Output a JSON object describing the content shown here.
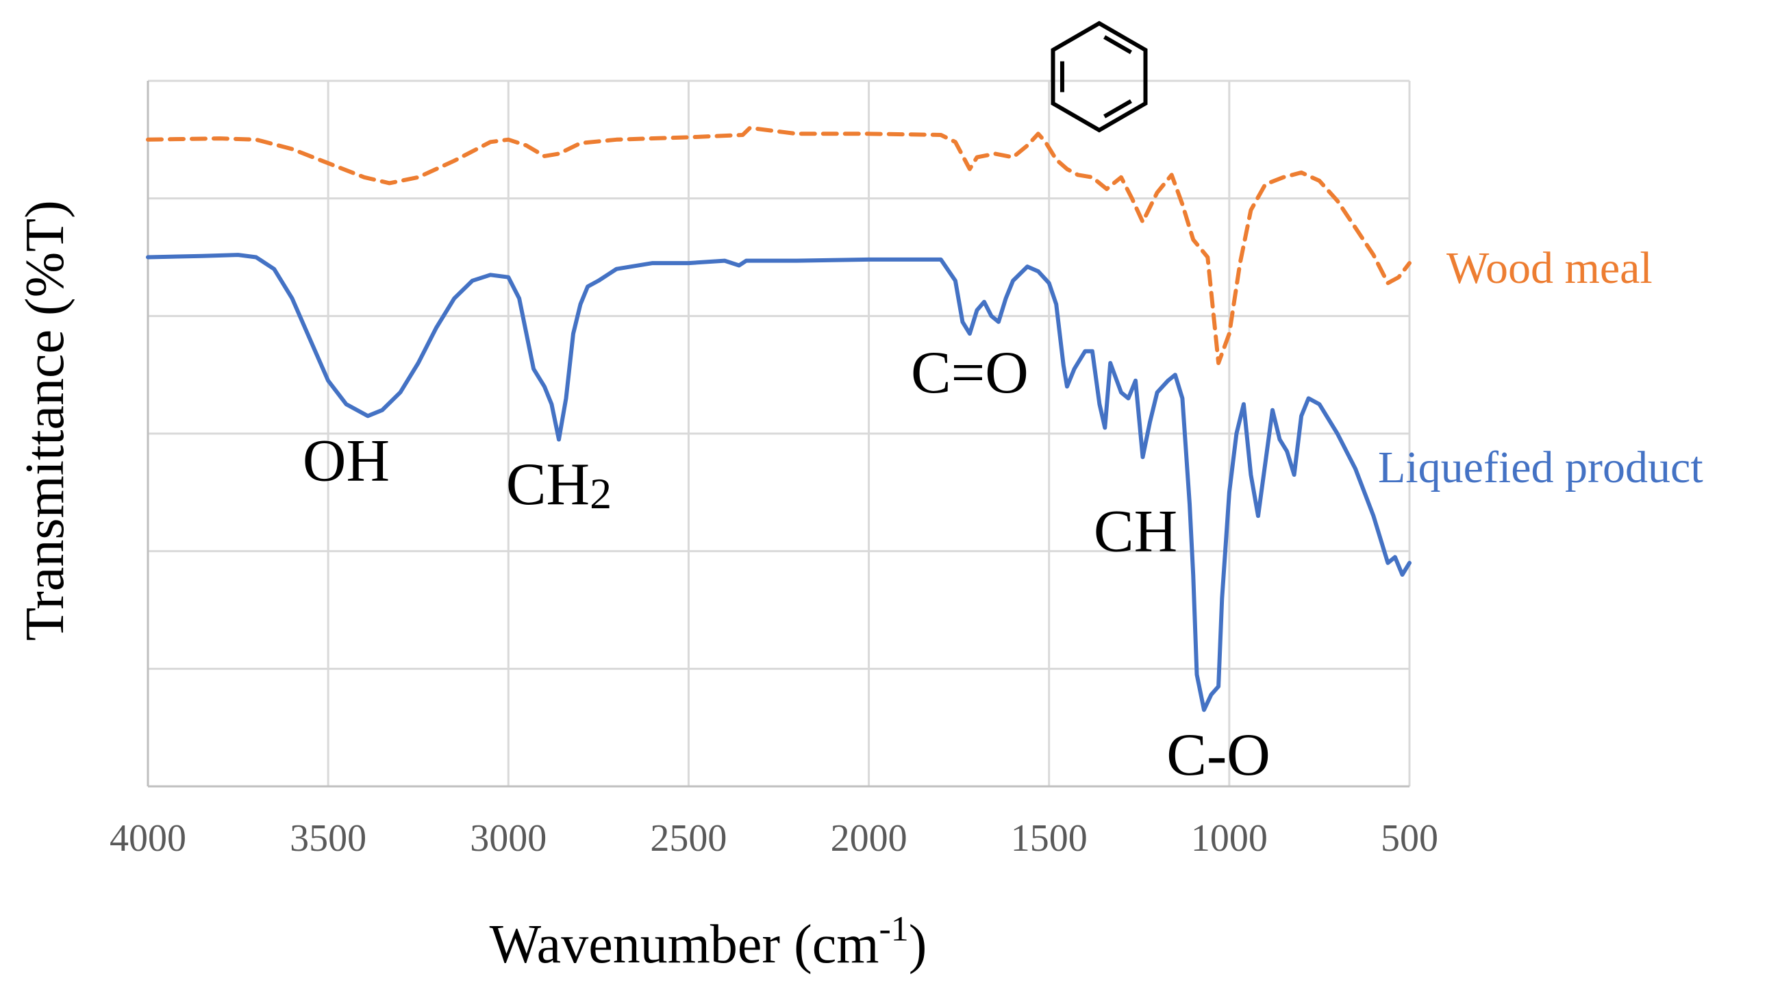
{
  "chart_data": {
    "type": "line",
    "title": "",
    "xlabel": "Wavenumber (cm-1)",
    "xlabel_main": "Wavenumber (cm",
    "xlabel_sup": "-1",
    "xlabel_close": ")",
    "ylabel": "Transmittance (%T)",
    "xlim": [
      4000,
      500
    ],
    "x_reversed": true,
    "ylim": [
      0,
      6
    ],
    "y_tick_labels_shown": false,
    "grid": true,
    "x_ticks": [
      4000,
      3500,
      3000,
      2500,
      2000,
      1500,
      1000,
      500
    ],
    "legend_placement": "right, labels next to each curve",
    "series": [
      {
        "name": "Wood meal",
        "color": "#ed7d31",
        "dash": "dashed",
        "x": [
          4000,
          3800,
          3700,
          3600,
          3500,
          3400,
          3330,
          3250,
          3150,
          3050,
          3000,
          2950,
          2900,
          2860,
          2800,
          2700,
          2500,
          2350,
          2330,
          2200,
          2000,
          1800,
          1760,
          1720,
          1700,
          1650,
          1600,
          1560,
          1530,
          1510,
          1480,
          1450,
          1420,
          1380,
          1340,
          1300,
          1270,
          1240,
          1200,
          1160,
          1130,
          1100,
          1060,
          1030,
          1000,
          970,
          940,
          900,
          850,
          800,
          750,
          700,
          650,
          600,
          560,
          530,
          500
        ],
        "y": [
          5.5,
          5.51,
          5.5,
          5.42,
          5.3,
          5.18,
          5.13,
          5.18,
          5.32,
          5.48,
          5.5,
          5.45,
          5.36,
          5.38,
          5.47,
          5.5,
          5.52,
          5.54,
          5.6,
          5.55,
          5.55,
          5.54,
          5.48,
          5.25,
          5.35,
          5.38,
          5.35,
          5.45,
          5.55,
          5.48,
          5.33,
          5.25,
          5.2,
          5.18,
          5.08,
          5.18,
          5.0,
          4.8,
          5.05,
          5.2,
          4.95,
          4.65,
          4.5,
          3.6,
          3.85,
          4.45,
          4.9,
          5.12,
          5.18,
          5.22,
          5.15,
          4.98,
          4.75,
          4.52,
          4.28,
          4.33,
          4.45
        ]
      },
      {
        "name": "Liquefied product",
        "color": "#4472c4",
        "dash": "solid",
        "x": [
          4000,
          3850,
          3750,
          3700,
          3650,
          3600,
          3550,
          3500,
          3450,
          3390,
          3350,
          3300,
          3250,
          3200,
          3150,
          3100,
          3050,
          3000,
          2970,
          2950,
          2930,
          2900,
          2880,
          2860,
          2840,
          2820,
          2800,
          2780,
          2750,
          2700,
          2600,
          2500,
          2400,
          2360,
          2340,
          2200,
          2000,
          1800,
          1760,
          1740,
          1720,
          1700,
          1680,
          1660,
          1640,
          1620,
          1600,
          1560,
          1530,
          1500,
          1480,
          1460,
          1450,
          1430,
          1420,
          1400,
          1380,
          1360,
          1345,
          1330,
          1300,
          1280,
          1260,
          1240,
          1220,
          1200,
          1170,
          1150,
          1130,
          1110,
          1100,
          1090,
          1070,
          1050,
          1030,
          1020,
          1000,
          980,
          960,
          940,
          920,
          900,
          880,
          860,
          840,
          820,
          800,
          780,
          750,
          700,
          650,
          600,
          560,
          540,
          520,
          500
        ],
        "y": [
          4.5,
          4.51,
          4.52,
          4.5,
          4.4,
          4.15,
          3.8,
          3.45,
          3.25,
          3.15,
          3.2,
          3.35,
          3.6,
          3.9,
          4.15,
          4.3,
          4.35,
          4.33,
          4.15,
          3.85,
          3.55,
          3.4,
          3.25,
          2.95,
          3.3,
          3.85,
          4.1,
          4.25,
          4.3,
          4.4,
          4.45,
          4.45,
          4.47,
          4.43,
          4.47,
          4.47,
          4.48,
          4.48,
          4.3,
          3.95,
          3.85,
          4.05,
          4.12,
          4.0,
          3.95,
          4.15,
          4.3,
          4.42,
          4.38,
          4.28,
          4.1,
          3.58,
          3.4,
          3.55,
          3.6,
          3.7,
          3.7,
          3.25,
          3.05,
          3.6,
          3.35,
          3.3,
          3.45,
          2.8,
          3.1,
          3.35,
          3.45,
          3.5,
          3.3,
          2.4,
          1.8,
          0.95,
          0.65,
          0.78,
          0.85,
          1.6,
          2.5,
          3.0,
          3.25,
          2.65,
          2.3,
          2.75,
          3.2,
          2.95,
          2.85,
          2.65,
          3.15,
          3.3,
          3.25,
          3.0,
          2.7,
          2.3,
          1.9,
          1.95,
          1.8,
          1.9
        ]
      }
    ],
    "annotations": [
      {
        "text": "OH",
        "x": 3450,
        "y": 2.6
      },
      {
        "text": "CH",
        "sub": "2",
        "x": 2860,
        "y": 2.4
      },
      {
        "text": "C=O",
        "x": 1720,
        "y": 3.35
      },
      {
        "text": "CH",
        "x": 1260,
        "y": 2.0
      },
      {
        "text": "C-O",
        "x": 1030,
        "y": 0.1
      }
    ]
  }
}
